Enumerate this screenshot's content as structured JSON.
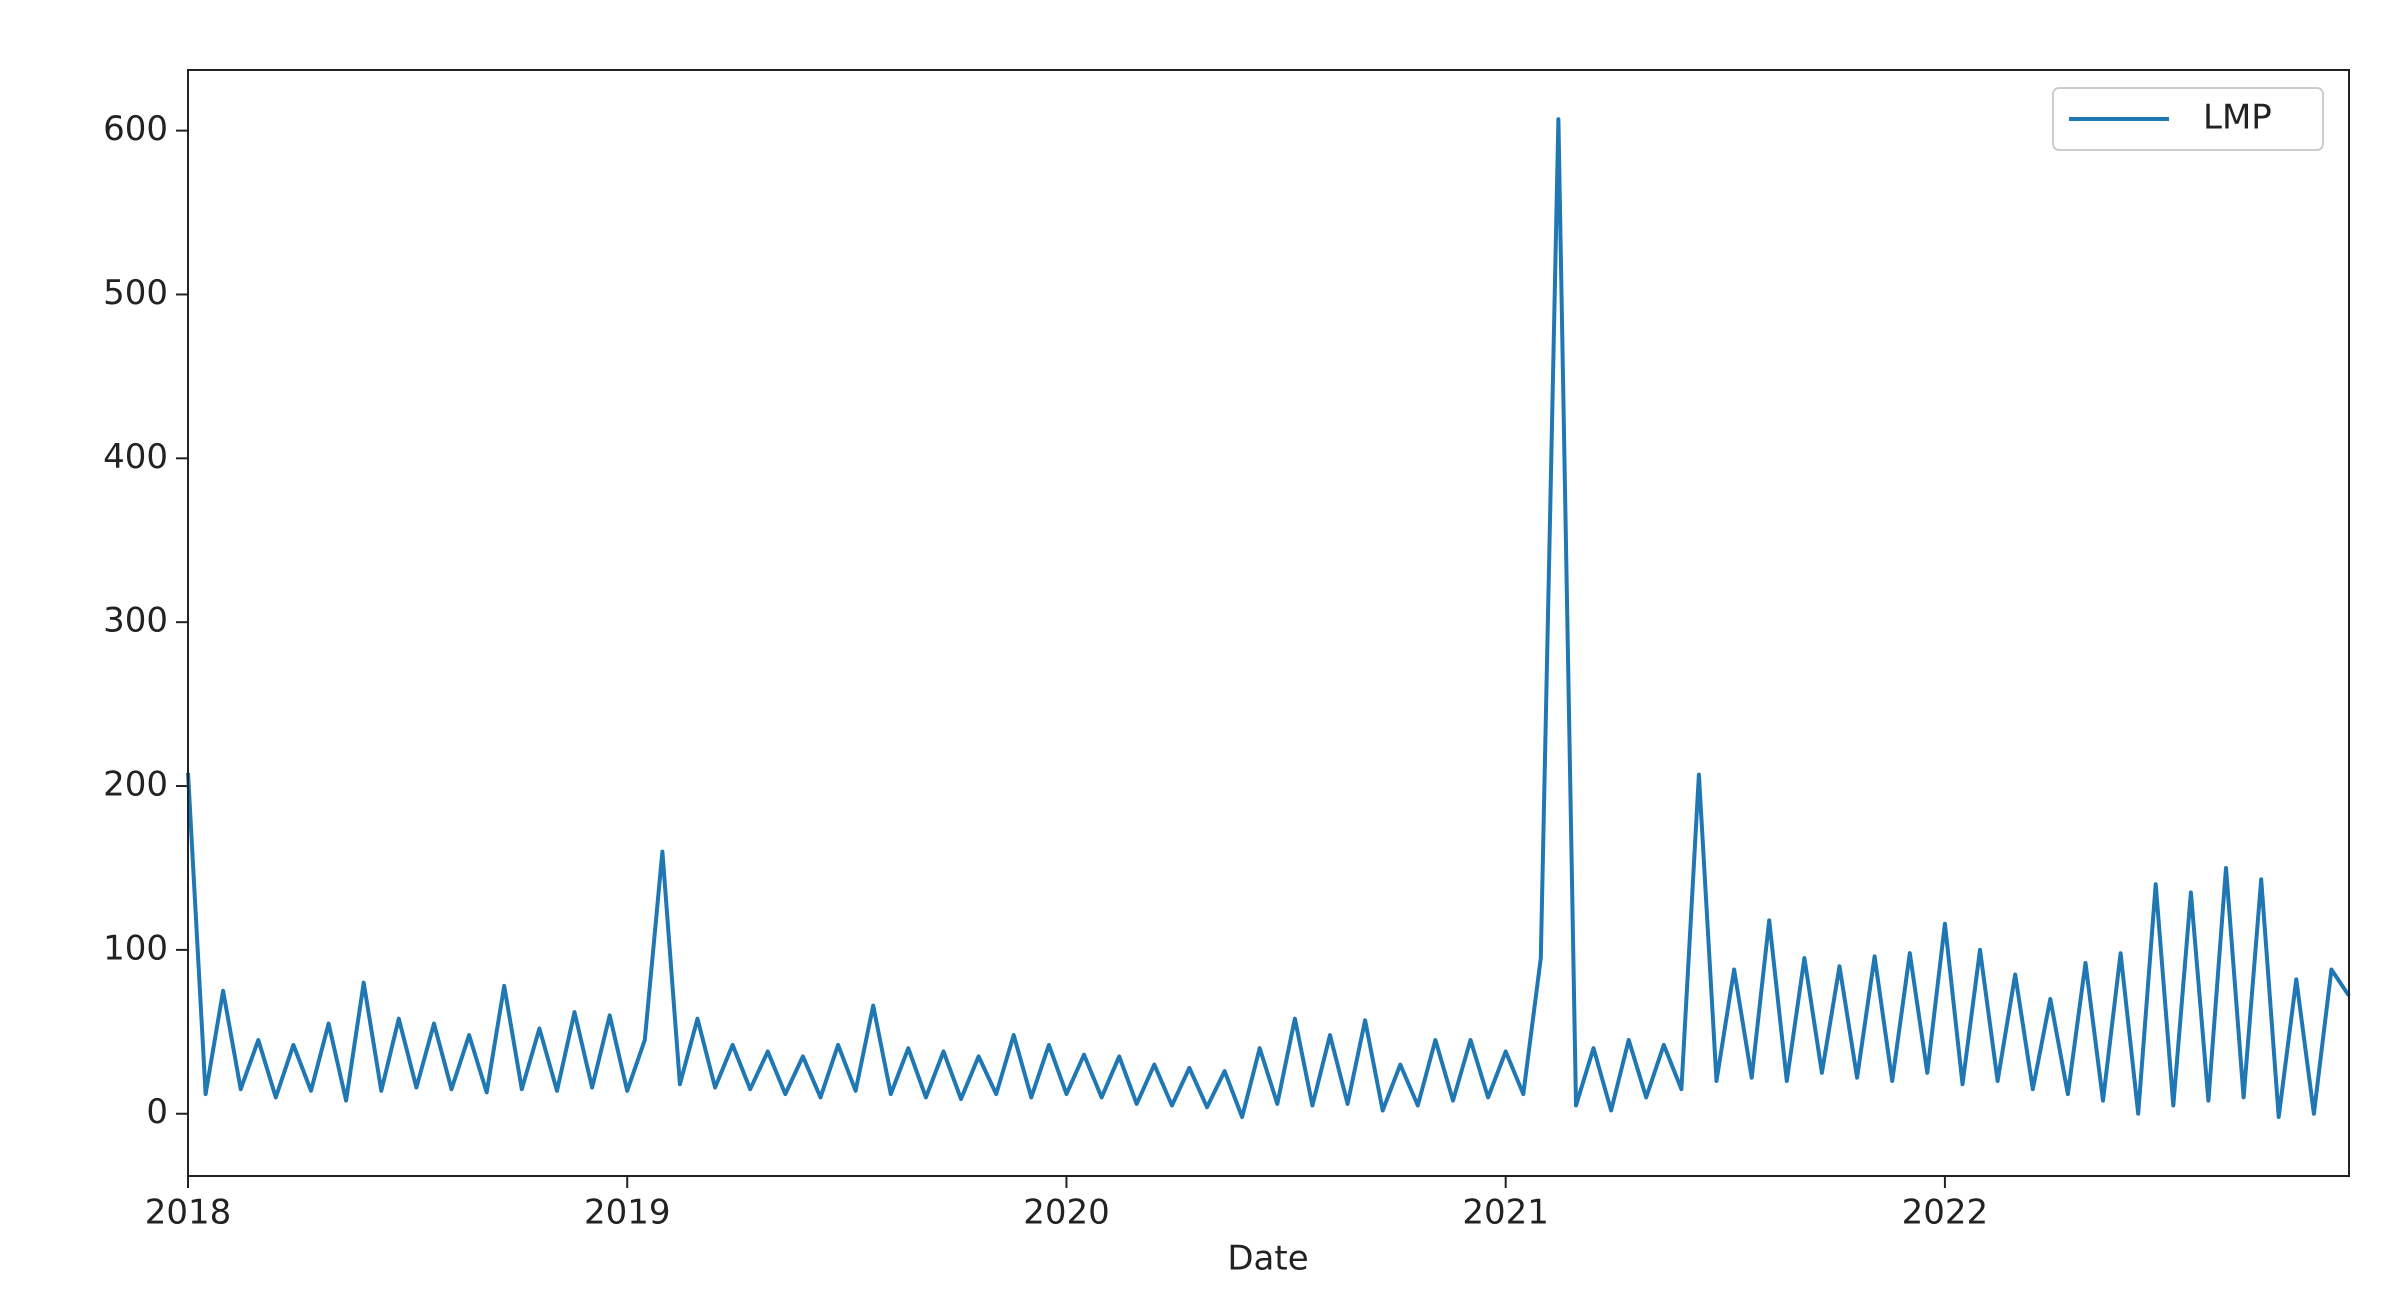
{
  "chart_data": {
    "type": "line",
    "xlabel": "Date",
    "x": [
      2018,
      2018.04,
      2018.08,
      2018.12,
      2018.16,
      2018.2,
      2018.24,
      2018.28,
      2018.32,
      2018.36,
      2018.4,
      2018.44,
      2018.48,
      2018.52,
      2018.56,
      2018.6,
      2018.64,
      2018.68,
      2018.72,
      2018.76,
      2018.8,
      2018.84,
      2018.88,
      2018.92,
      2018.96,
      2019,
      2019.04,
      2019.08,
      2019.12,
      2019.16,
      2019.2,
      2019.24,
      2019.28,
      2019.32,
      2019.36,
      2019.4,
      2019.44,
      2019.48,
      2019.52,
      2019.56,
      2019.6,
      2019.64,
      2019.68,
      2019.72,
      2019.76,
      2019.8,
      2019.84,
      2019.88,
      2019.92,
      2019.96,
      2020,
      2020.04,
      2020.08,
      2020.12,
      2020.16,
      2020.2,
      2020.24,
      2020.28,
      2020.32,
      2020.36,
      2020.4,
      2020.44,
      2020.48,
      2020.52,
      2020.56,
      2020.6,
      2020.64,
      2020.68,
      2020.72,
      2020.76,
      2020.8,
      2020.84,
      2020.88,
      2020.92,
      2020.96,
      2021,
      2021.04,
      2021.08,
      2021.12,
      2021.16,
      2021.2,
      2021.24,
      2021.28,
      2021.32,
      2021.36,
      2021.4,
      2021.44,
      2021.48,
      2021.52,
      2021.56,
      2021.6,
      2021.64,
      2021.68,
      2021.72,
      2021.76,
      2021.8,
      2021.84,
      2021.88,
      2021.92,
      2021.96,
      2022,
      2022.04,
      2022.08,
      2022.12,
      2022.16,
      2022.2,
      2022.24,
      2022.28,
      2022.32,
      2022.36,
      2022.4,
      2022.44,
      2022.48,
      2022.52,
      2022.56,
      2022.6,
      2022.64,
      2022.68,
      2022.72,
      2022.76,
      2022.8,
      2022.84,
      2022.88,
      2022.92
    ],
    "series": [
      {
        "name": "LMP",
        "color": "#1f77b4",
        "values": [
          208,
          12,
          75,
          15,
          45,
          10,
          42,
          14,
          55,
          8,
          80,
          14,
          58,
          16,
          55,
          15,
          48,
          13,
          78,
          15,
          52,
          14,
          62,
          16,
          60,
          14,
          45,
          160,
          18,
          58,
          16,
          42,
          15,
          38,
          12,
          35,
          10,
          42,
          14,
          66,
          12,
          40,
          10,
          38,
          9,
          35,
          12,
          48,
          10,
          42,
          12,
          36,
          10,
          35,
          6,
          30,
          5,
          28,
          4,
          26,
          -2,
          40,
          6,
          58,
          5,
          48,
          6,
          57,
          2,
          30,
          5,
          45,
          8,
          45,
          10,
          38,
          12,
          95,
          607,
          5,
          40,
          2,
          45,
          10,
          42,
          15,
          207,
          20,
          88,
          22,
          118,
          20,
          95,
          25,
          90,
          22,
          96,
          20,
          98,
          25,
          116,
          18,
          100,
          20,
          85,
          15,
          70,
          12,
          92,
          8,
          98,
          0,
          140,
          5,
          135,
          8,
          150,
          10,
          143,
          -2,
          82,
          0,
          88,
          72
        ]
      }
    ],
    "xlim": [
      2018,
      2022.92
    ],
    "xticks": [
      2018,
      2019,
      2020,
      2021,
      2022
    ],
    "ylim": [
      -38,
      637
    ],
    "yticks": [
      0,
      100,
      200,
      300,
      400,
      500,
      600
    ],
    "legend": "upper right"
  }
}
